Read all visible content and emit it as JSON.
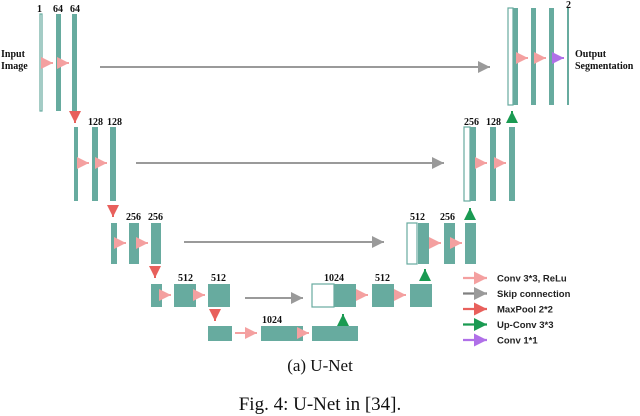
{
  "inputs": {
    "input_label_1": "Input",
    "input_label_2": "Image",
    "output_label_1": "Output",
    "output_label_2": "Segmentation"
  },
  "channels": {
    "l1_in": "1",
    "l1_a": "64",
    "l1_b": "64",
    "l2_a": "128",
    "l2_b": "128",
    "l3_a": "256",
    "l3_b": "256",
    "l4_a": "512",
    "l4_b": "512",
    "l5": "1024",
    "u4_up": "1024",
    "u4_b": "512",
    "u3_up": "512",
    "u3_b": "256",
    "u2_up": "256",
    "u2_b": "128",
    "out": "2"
  },
  "legend": [
    {
      "label": "Conv 3*3, ReLu",
      "color": "#f4a0a0"
    },
    {
      "label": "Skip connection",
      "color": "#808080"
    },
    {
      "label": "MaxPool 2*2",
      "color": "#e8605c"
    },
    {
      "label": "Up-Conv 3*3",
      "color": "#1a9a52"
    },
    {
      "label": "Conv 1*1",
      "color": "#b070e8"
    }
  ],
  "colors": {
    "block": "#67ab9f",
    "block_stroke": "#4e8f84"
  },
  "caption": "(a) U-Net",
  "figure_caption": "Fig. 4: U-Net in [34]."
}
